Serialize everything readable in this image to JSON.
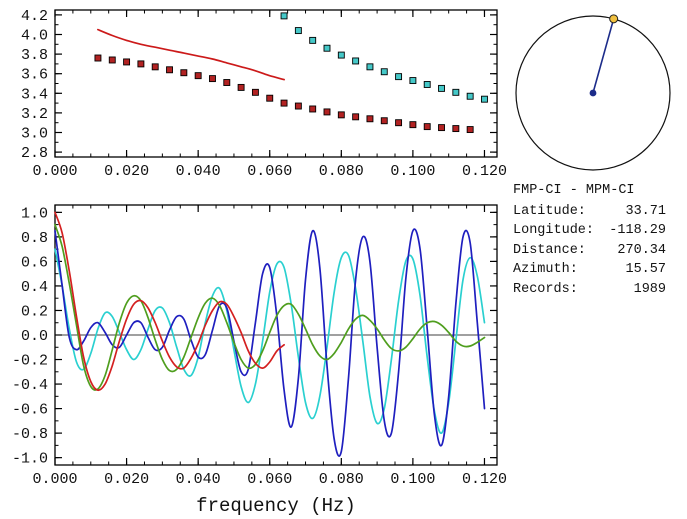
{
  "info_panel": {
    "title": "FMP-CI - MPM-CI",
    "rows": [
      {
        "label": "Latitude:",
        "value": "33.71"
      },
      {
        "label": "Longitude:",
        "value": "-118.29"
      },
      {
        "label": "Distance:",
        "value": "270.34"
      },
      {
        "label": "Azimuth:",
        "value": "15.57"
      },
      {
        "label": "Records:",
        "value": "1989"
      }
    ]
  },
  "azimuth_dial": {
    "azimuth_deg": 15.57,
    "circle_color": "#111111",
    "line_color": "#1c2c8a",
    "center_dot_color": "#1c2c8a",
    "marker_color": "#f0c040"
  },
  "chart_data": [
    {
      "id": "dispersion",
      "type": "line",
      "title": "",
      "xlabel": "",
      "ylabel": "",
      "xlim": [
        0,
        0.1235
      ],
      "ylim": [
        2.75,
        4.25
      ],
      "grid": false,
      "legend": false,
      "x_ticks": {
        "values": [
          0.0,
          0.02,
          0.04,
          0.06,
          0.08,
          0.1,
          0.12
        ],
        "labels": [
          "0.000",
          "0.020",
          "0.040",
          "0.060",
          "0.080",
          "0.100",
          "0.120"
        ]
      },
      "y_ticks": {
        "values": [
          2.8,
          3.0,
          3.2,
          3.4,
          3.6,
          3.8,
          4.0,
          4.2
        ],
        "labels": [
          "2.8",
          "3.0",
          "3.2",
          "3.4",
          "3.6",
          "3.8",
          "4.0",
          "4.2"
        ]
      },
      "x_minor_step": 0.005,
      "y_minor_step": 0.1,
      "zero_line": false,
      "series": [
        {
          "name": "smoothed-dispersion-line",
          "mode": "line",
          "color": "#cc1a1a",
          "x_start": 0.012,
          "x_step": 0.004,
          "values": [
            4.05,
            3.99,
            3.94,
            3.9,
            3.87,
            3.84,
            3.81,
            3.78,
            3.75,
            3.71,
            3.67,
            3.63,
            3.58,
            3.54
          ]
        },
        {
          "name": "lower-branch-picks",
          "mode": "markers",
          "marker": "square",
          "color": "#b22222",
          "x_start": 0.012,
          "x_step": 0.004,
          "values": [
            3.76,
            3.74,
            3.72,
            3.7,
            3.67,
            3.64,
            3.61,
            3.58,
            3.55,
            3.51,
            3.46,
            3.41,
            3.35,
            3.3,
            3.27,
            3.24,
            3.21,
            3.18,
            3.16,
            3.14,
            3.12,
            3.1,
            3.08,
            3.06,
            3.05,
            3.04,
            3.03
          ]
        },
        {
          "name": "upper-branch-picks",
          "mode": "markers",
          "marker": "square",
          "color": "#45c8c8",
          "x_start": 0.064,
          "x_step": 0.004,
          "values": [
            4.19,
            4.04,
            3.94,
            3.86,
            3.79,
            3.73,
            3.67,
            3.62,
            3.57,
            3.53,
            3.49,
            3.45,
            3.41,
            3.37,
            3.34
          ]
        }
      ]
    },
    {
      "id": "spectra",
      "type": "line",
      "title": "",
      "xlabel": "frequency (Hz)",
      "ylabel": "",
      "xlim": [
        0,
        0.1235
      ],
      "ylim": [
        -1.06,
        1.06
      ],
      "grid": false,
      "legend": false,
      "x_ticks": {
        "values": [
          0.0,
          0.02,
          0.04,
          0.06,
          0.08,
          0.1,
          0.12
        ],
        "labels": [
          "0.000",
          "0.020",
          "0.040",
          "0.060",
          "0.080",
          "0.100",
          "0.120"
        ]
      },
      "y_ticks": {
        "values": [
          -1.0,
          -0.8,
          -0.6,
          -0.4,
          -0.2,
          0.0,
          0.2,
          0.4,
          0.6,
          0.8,
          1.0
        ],
        "labels": [
          "-1.0",
          "-0.8",
          "-0.6",
          "-0.4",
          "-0.2",
          "0.0",
          "0.2",
          "0.4",
          "0.6",
          "0.8",
          "1.0"
        ]
      },
      "x_minor_step": 0.005,
      "y_minor_step": 0.1,
      "zero_line": true,
      "series": [
        {
          "name": "spectrum-cyan",
          "mode": "line",
          "color": "#2ad0d0",
          "x_start": 0,
          "x_step": 0.002,
          "values": [
            0.7,
            0.4,
            0.05,
            -0.22,
            -0.28,
            -0.15,
            0.05,
            0.18,
            0.15,
            0.02,
            -0.12,
            -0.2,
            -0.12,
            0.05,
            0.2,
            0.22,
            0.1,
            -0.1,
            -0.28,
            -0.33,
            -0.18,
            0.1,
            0.32,
            0.38,
            0.2,
            -0.12,
            -0.42,
            -0.55,
            -0.4,
            -0.05,
            0.35,
            0.58,
            0.55,
            0.25,
            -0.18,
            -0.55,
            -0.68,
            -0.5,
            -0.1,
            0.35,
            0.63,
            0.65,
            0.38,
            -0.05,
            -0.5,
            -0.72,
            -0.6,
            -0.2,
            0.28,
            0.6,
            0.62,
            0.32,
            -0.18,
            -0.62,
            -0.8,
            -0.55,
            -0.05,
            0.45,
            0.63,
            0.48,
            0.1
          ]
        },
        {
          "name": "spectrum-blue",
          "mode": "line",
          "color": "#1f1fbf",
          "x_start": 0,
          "x_step": 0.002,
          "values": [
            0.85,
            0.4,
            -0.02,
            -0.12,
            -0.05,
            0.06,
            0.1,
            0.02,
            -0.08,
            -0.1,
            0.0,
            0.1,
            0.1,
            -0.02,
            -0.12,
            -0.1,
            0.04,
            0.15,
            0.13,
            -0.04,
            -0.18,
            -0.16,
            0.04,
            0.24,
            0.22,
            -0.05,
            -0.3,
            -0.28,
            0.1,
            0.5,
            0.55,
            0.15,
            -0.45,
            -0.75,
            -0.35,
            0.45,
            0.85,
            0.55,
            -0.25,
            -0.85,
            -0.95,
            -0.35,
            0.45,
            0.8,
            0.6,
            -0.1,
            -0.7,
            -0.8,
            -0.3,
            0.45,
            0.85,
            0.7,
            0.05,
            -0.65,
            -0.9,
            -0.5,
            0.25,
            0.8,
            0.75,
            0.1,
            -0.6
          ]
        },
        {
          "name": "spectrum-green",
          "mode": "line",
          "color": "#4f9e1e",
          "x_start": 0,
          "x_step": 0.002,
          "values": [
            0.9,
            0.72,
            0.42,
            0.08,
            -0.25,
            -0.42,
            -0.44,
            -0.33,
            -0.12,
            0.1,
            0.26,
            0.32,
            0.28,
            0.14,
            -0.04,
            -0.2,
            -0.29,
            -0.28,
            -0.18,
            -0.02,
            0.14,
            0.26,
            0.3,
            0.24,
            0.1,
            -0.06,
            -0.2,
            -0.27,
            -0.24,
            -0.13,
            0.02,
            0.16,
            0.24,
            0.25,
            0.17,
            0.05,
            -0.08,
            -0.17,
            -0.2,
            -0.15,
            -0.06,
            0.05,
            0.13,
            0.16,
            0.12,
            0.05,
            -0.04,
            -0.11,
            -0.13,
            -0.1,
            -0.03,
            0.05,
            0.1,
            0.11,
            0.08,
            0.02,
            -0.05,
            -0.09,
            -0.09,
            -0.06,
            -0.02
          ]
        },
        {
          "name": "spectrum-red",
          "mode": "line",
          "color": "#d42020",
          "x_start": 0,
          "x_step": 0.002,
          "values": [
            1.0,
            0.83,
            0.52,
            0.15,
            -0.18,
            -0.38,
            -0.45,
            -0.4,
            -0.25,
            -0.05,
            0.13,
            0.25,
            0.28,
            0.22,
            0.1,
            -0.05,
            -0.18,
            -0.26,
            -0.27,
            -0.19,
            -0.07,
            0.08,
            0.2,
            0.27,
            0.25,
            0.15,
            0.02,
            -0.13,
            -0.23,
            -0.27,
            -0.22,
            -0.13,
            -0.08
          ]
        }
      ]
    }
  ]
}
